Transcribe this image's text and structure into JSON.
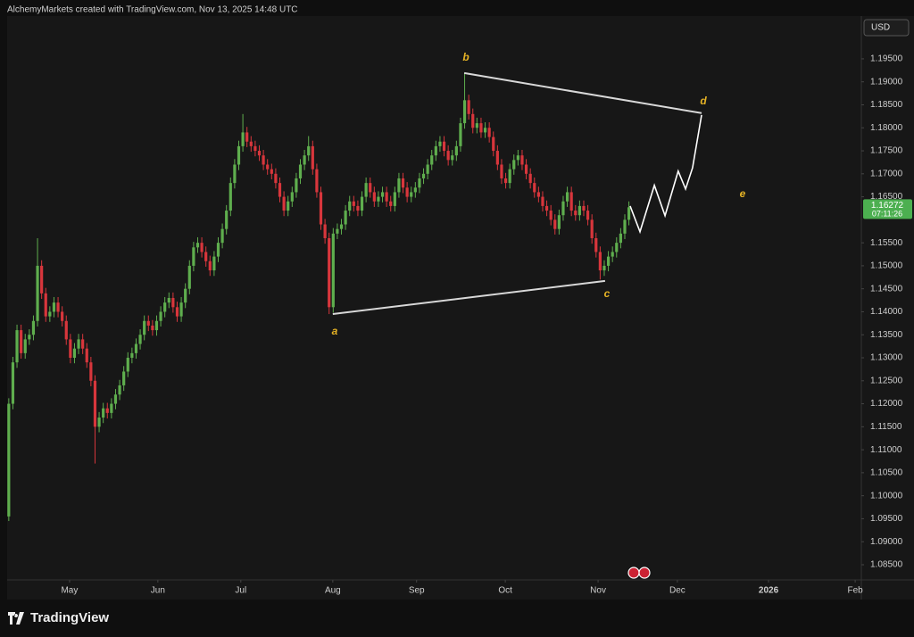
{
  "header": {
    "caption": "AlchemyMarkets created with TradingView.com, Nov 13, 2025 14:48 UTC"
  },
  "branding": "TradingView",
  "chart_data": {
    "type": "candlestick",
    "currency": "USD",
    "up_color": "#5fae4e",
    "down_color": "#d8363c",
    "grid": false,
    "xlim": [
      -0.4,
      207.6
    ],
    "xticks": [
      {
        "value": 14.8,
        "label": "May"
      },
      {
        "value": 36.3,
        "label": "Jun"
      },
      {
        "value": 56.5,
        "label": "Jul"
      },
      {
        "value": 78.9,
        "label": "Aug"
      },
      {
        "value": 99.3,
        "label": "Sep"
      },
      {
        "value": 120.9,
        "label": "Oct"
      },
      {
        "value": 143.5,
        "label": "Nov"
      },
      {
        "value": 162.8,
        "label": "Dec"
      },
      {
        "value": 185,
        "label": "2026"
      },
      {
        "value": 206.1,
        "label": "Feb"
      }
    ],
    "ylim": [
      1.0817,
      1.2043
    ],
    "yticks": [
      {
        "value": 1.085,
        "label": "1.08500"
      },
      {
        "value": 1.09,
        "label": "1.09000"
      },
      {
        "value": 1.095,
        "label": "1.09500"
      },
      {
        "value": 1.1,
        "label": "1.10000"
      },
      {
        "value": 1.105,
        "label": "1.10500"
      },
      {
        "value": 1.11,
        "label": "1.11000"
      },
      {
        "value": 1.115,
        "label": "1.11500"
      },
      {
        "value": 1.12,
        "label": "1.12000"
      },
      {
        "value": 1.125,
        "label": "1.12500"
      },
      {
        "value": 1.13,
        "label": "1.13000"
      },
      {
        "value": 1.135,
        "label": "1.13500"
      },
      {
        "value": 1.14,
        "label": "1.14000"
      },
      {
        "value": 1.145,
        "label": "1.14500"
      },
      {
        "value": 1.15,
        "label": "1.15000"
      },
      {
        "value": 1.155,
        "label": "1.15500"
      },
      {
        "value": 1.165,
        "label": "1.16500"
      },
      {
        "value": 1.17,
        "label": "1.17000"
      },
      {
        "value": 1.175,
        "label": "1.17500"
      },
      {
        "value": 1.18,
        "label": "1.18000"
      },
      {
        "value": 1.185,
        "label": "1.18500"
      },
      {
        "value": 1.19,
        "label": "1.19000"
      },
      {
        "value": 1.195,
        "label": "1.19500"
      }
    ],
    "last_price": {
      "value": 1.16272,
      "label": "1.16272"
    },
    "countdown": "07:11:26",
    "candles": [
      [
        1.0955,
        1.1212,
        1.0945,
        1.12
      ],
      [
        1.12,
        1.1302,
        1.1188,
        1.129
      ],
      [
        1.129,
        1.1372,
        1.1278,
        1.136
      ],
      [
        1.136,
        1.1372,
        1.1298,
        1.131
      ],
      [
        1.131,
        1.1352,
        1.1298,
        1.134
      ],
      [
        1.134,
        1.1362,
        1.1328,
        1.135
      ],
      [
        1.135,
        1.1392,
        1.1338,
        1.138
      ],
      [
        1.138,
        1.156,
        1.1368,
        1.15
      ],
      [
        1.15,
        1.1512,
        1.1428,
        1.144
      ],
      [
        1.144,
        1.1452,
        1.1378,
        1.139
      ],
      [
        1.139,
        1.1412,
        1.1378,
        1.14
      ],
      [
        1.14,
        1.1432,
        1.1388,
        1.142
      ],
      [
        1.142,
        1.1432,
        1.1388,
        1.14
      ],
      [
        1.14,
        1.1412,
        1.1368,
        1.138
      ],
      [
        1.138,
        1.1392,
        1.1328,
        1.134
      ],
      [
        1.134,
        1.1352,
        1.1288,
        1.13
      ],
      [
        1.13,
        1.1332,
        1.1288,
        1.132
      ],
      [
        1.132,
        1.1352,
        1.1308,
        1.134
      ],
      [
        1.134,
        1.1352,
        1.1308,
        1.132
      ],
      [
        1.132,
        1.1332,
        1.1278,
        1.129
      ],
      [
        1.129,
        1.1302,
        1.1238,
        1.125
      ],
      [
        1.125,
        1.1262,
        1.107,
        1.115
      ],
      [
        1.115,
        1.1182,
        1.1138,
        1.117
      ],
      [
        1.117,
        1.1202,
        1.1158,
        1.119
      ],
      [
        1.119,
        1.1202,
        1.1168,
        1.118
      ],
      [
        1.118,
        1.1212,
        1.1168,
        1.12
      ],
      [
        1.12,
        1.1232,
        1.1188,
        1.122
      ],
      [
        1.122,
        1.1252,
        1.1208,
        1.124
      ],
      [
        1.124,
        1.1282,
        1.1228,
        1.127
      ],
      [
        1.127,
        1.1312,
        1.1258,
        1.13
      ],
      [
        1.13,
        1.1322,
        1.1288,
        1.131
      ],
      [
        1.131,
        1.1342,
        1.1298,
        1.133
      ],
      [
        1.133,
        1.1362,
        1.1318,
        1.135
      ],
      [
        1.135,
        1.1392,
        1.1338,
        1.138
      ],
      [
        1.138,
        1.1392,
        1.1358,
        1.137
      ],
      [
        1.137,
        1.1382,
        1.1348,
        1.136
      ],
      [
        1.136,
        1.1392,
        1.1348,
        1.138
      ],
      [
        1.138,
        1.1412,
        1.1368,
        1.14
      ],
      [
        1.14,
        1.1432,
        1.1388,
        1.142
      ],
      [
        1.142,
        1.1442,
        1.1408,
        1.143
      ],
      [
        1.143,
        1.1442,
        1.1398,
        1.141
      ],
      [
        1.141,
        1.1422,
        1.1378,
        1.139
      ],
      [
        1.139,
        1.1432,
        1.1378,
        1.142
      ],
      [
        1.142,
        1.1462,
        1.1408,
        1.145
      ],
      [
        1.145,
        1.1512,
        1.1438,
        1.15
      ],
      [
        1.15,
        1.1552,
        1.1488,
        1.154
      ],
      [
        1.154,
        1.1562,
        1.1528,
        1.155
      ],
      [
        1.155,
        1.1562,
        1.1518,
        1.153
      ],
      [
        1.153,
        1.1542,
        1.1498,
        1.151
      ],
      [
        1.151,
        1.1522,
        1.1478,
        1.149
      ],
      [
        1.149,
        1.1532,
        1.1478,
        1.152
      ],
      [
        1.152,
        1.1562,
        1.1508,
        1.155
      ],
      [
        1.155,
        1.1592,
        1.1538,
        1.158
      ],
      [
        1.158,
        1.1632,
        1.1568,
        1.162
      ],
      [
        1.162,
        1.1692,
        1.1608,
        1.168
      ],
      [
        1.168,
        1.1732,
        1.1668,
        1.172
      ],
      [
        1.172,
        1.1772,
        1.1708,
        1.176
      ],
      [
        1.176,
        1.183,
        1.1748,
        1.179
      ],
      [
        1.179,
        1.1802,
        1.1758,
        1.177
      ],
      [
        1.177,
        1.1782,
        1.1748,
        1.176
      ],
      [
        1.176,
        1.1772,
        1.1738,
        1.175
      ],
      [
        1.175,
        1.1762,
        1.1728,
        1.174
      ],
      [
        1.174,
        1.1752,
        1.1708,
        1.172
      ],
      [
        1.172,
        1.1732,
        1.1698,
        1.171
      ],
      [
        1.171,
        1.1722,
        1.1688,
        1.17
      ],
      [
        1.17,
        1.1712,
        1.1668,
        1.168
      ],
      [
        1.168,
        1.1692,
        1.1638,
        1.165
      ],
      [
        1.165,
        1.1662,
        1.1608,
        1.162
      ],
      [
        1.162,
        1.1652,
        1.1608,
        1.164
      ],
      [
        1.164,
        1.1672,
        1.1628,
        1.166
      ],
      [
        1.166,
        1.1702,
        1.1648,
        1.169
      ],
      [
        1.169,
        1.1732,
        1.1678,
        1.172
      ],
      [
        1.172,
        1.1752,
        1.1708,
        1.174
      ],
      [
        1.174,
        1.1782,
        1.1728,
        1.176
      ],
      [
        1.176,
        1.1772,
        1.1698,
        1.171
      ],
      [
        1.171,
        1.1722,
        1.1648,
        1.166
      ],
      [
        1.166,
        1.1672,
        1.1578,
        1.159
      ],
      [
        1.159,
        1.1602,
        1.1548,
        1.156
      ],
      [
        1.156,
        1.1572,
        1.1395,
        1.141
      ],
      [
        1.141,
        1.1582,
        1.1398,
        1.157
      ],
      [
        1.157,
        1.1592,
        1.1558,
        1.158
      ],
      [
        1.158,
        1.1602,
        1.1568,
        1.159
      ],
      [
        1.159,
        1.1632,
        1.1578,
        1.162
      ],
      [
        1.162,
        1.1652,
        1.1608,
        1.164
      ],
      [
        1.164,
        1.1652,
        1.1618,
        1.163
      ],
      [
        1.163,
        1.1642,
        1.1608,
        1.162
      ],
      [
        1.162,
        1.1662,
        1.1608,
        1.165
      ],
      [
        1.165,
        1.1692,
        1.1638,
        1.168
      ],
      [
        1.168,
        1.1692,
        1.1648,
        1.166
      ],
      [
        1.166,
        1.1672,
        1.1628,
        1.164
      ],
      [
        1.164,
        1.1662,
        1.1628,
        1.165
      ],
      [
        1.165,
        1.1672,
        1.1638,
        1.166
      ],
      [
        1.166,
        1.1672,
        1.1628,
        1.164
      ],
      [
        1.164,
        1.1652,
        1.1618,
        1.163
      ],
      [
        1.163,
        1.1672,
        1.1618,
        1.166
      ],
      [
        1.166,
        1.1702,
        1.1648,
        1.169
      ],
      [
        1.169,
        1.1702,
        1.1658,
        1.167
      ],
      [
        1.167,
        1.1682,
        1.1638,
        1.165
      ],
      [
        1.165,
        1.1672,
        1.1638,
        1.166
      ],
      [
        1.166,
        1.1682,
        1.1648,
        1.167
      ],
      [
        1.167,
        1.1702,
        1.1658,
        1.169
      ],
      [
        1.169,
        1.1712,
        1.1678,
        1.17
      ],
      [
        1.17,
        1.1732,
        1.1688,
        1.172
      ],
      [
        1.172,
        1.1752,
        1.1708,
        1.174
      ],
      [
        1.174,
        1.1772,
        1.1728,
        1.176
      ],
      [
        1.176,
        1.1782,
        1.1748,
        1.177
      ],
      [
        1.177,
        1.1782,
        1.1738,
        1.175
      ],
      [
        1.175,
        1.1762,
        1.1718,
        1.173
      ],
      [
        1.173,
        1.1752,
        1.1718,
        1.174
      ],
      [
        1.174,
        1.1772,
        1.1728,
        1.176
      ],
      [
        1.176,
        1.1822,
        1.1748,
        1.181
      ],
      [
        1.181,
        1.1918,
        1.1798,
        1.186
      ],
      [
        1.186,
        1.1872,
        1.1818,
        1.183
      ],
      [
        1.183,
        1.1842,
        1.1788,
        1.18
      ],
      [
        1.18,
        1.1822,
        1.1788,
        1.181
      ],
      [
        1.181,
        1.1822,
        1.1778,
        1.179
      ],
      [
        1.179,
        1.1812,
        1.1778,
        1.18
      ],
      [
        1.18,
        1.1812,
        1.1768,
        1.178
      ],
      [
        1.178,
        1.1792,
        1.1738,
        1.175
      ],
      [
        1.175,
        1.1762,
        1.1708,
        1.172
      ],
      [
        1.172,
        1.1732,
        1.1678,
        1.169
      ],
      [
        1.169,
        1.1702,
        1.1668,
        1.168
      ],
      [
        1.168,
        1.1722,
        1.1668,
        1.171
      ],
      [
        1.171,
        1.1742,
        1.1698,
        1.173
      ],
      [
        1.173,
        1.1752,
        1.1718,
        1.174
      ],
      [
        1.174,
        1.1752,
        1.1708,
        1.172
      ],
      [
        1.172,
        1.1732,
        1.1688,
        1.17
      ],
      [
        1.17,
        1.1712,
        1.1668,
        1.168
      ],
      [
        1.168,
        1.1692,
        1.1648,
        1.166
      ],
      [
        1.166,
        1.1672,
        1.1638,
        1.165
      ],
      [
        1.165,
        1.1662,
        1.1618,
        1.163
      ],
      [
        1.163,
        1.1642,
        1.1608,
        1.162
      ],
      [
        1.162,
        1.1632,
        1.1588,
        1.16
      ],
      [
        1.16,
        1.1612,
        1.1568,
        1.158
      ],
      [
        1.158,
        1.1622,
        1.1568,
        1.161
      ],
      [
        1.161,
        1.1652,
        1.1598,
        1.164
      ],
      [
        1.164,
        1.1672,
        1.1628,
        1.166
      ],
      [
        1.166,
        1.1672,
        1.1608,
        1.162
      ],
      [
        1.162,
        1.1632,
        1.1598,
        1.161
      ],
      [
        1.161,
        1.1642,
        1.1598,
        1.163
      ],
      [
        1.163,
        1.1642,
        1.1608,
        1.162
      ],
      [
        1.162,
        1.1632,
        1.1588,
        1.16
      ],
      [
        1.16,
        1.1612,
        1.1548,
        1.156
      ],
      [
        1.156,
        1.1572,
        1.1518,
        1.153
      ],
      [
        1.153,
        1.1542,
        1.147,
        1.149
      ],
      [
        1.149,
        1.1512,
        1.1478,
        1.15
      ],
      [
        1.15,
        1.1532,
        1.1488,
        1.152
      ],
      [
        1.152,
        1.1542,
        1.1508,
        1.153
      ],
      [
        1.153,
        1.1562,
        1.1518,
        1.155
      ],
      [
        1.155,
        1.1582,
        1.1538,
        1.157
      ],
      [
        1.157,
        1.1612,
        1.1558,
        1.16
      ],
      [
        1.16,
        1.164,
        1.1588,
        1.16272
      ]
    ],
    "drawings": {
      "trend_lines": [
        {
          "x": [
            78.9,
            145.2
          ],
          "y": [
            1.1395,
            1.1467
          ]
        },
        {
          "x": [
            110.9,
            168.7
          ],
          "y": [
            1.1919,
            1.1832
          ]
        }
      ],
      "forecast": {
        "x": [
          151.3,
          153.7,
          157.2,
          159.8,
          163,
          164.8,
          166.5,
          168.7
        ],
        "y": [
          1.163,
          1.1574,
          1.1675,
          1.1609,
          1.1706,
          1.1667,
          1.1713,
          1.1828
        ]
      }
    },
    "annotations": [
      "a",
      "b",
      "c",
      "d",
      "e"
    ]
  }
}
